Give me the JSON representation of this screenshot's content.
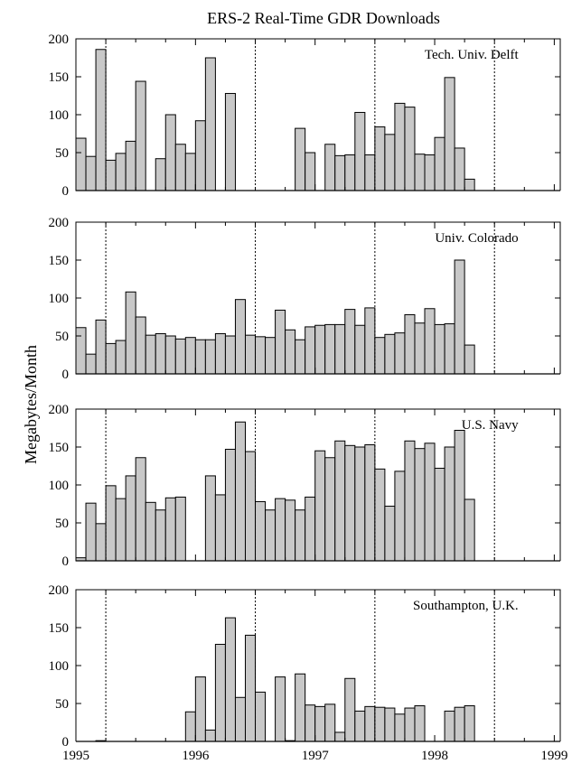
{
  "title": "ERS-2 Real-Time GDR Downloads",
  "ylabel": "Megabytes/Month",
  "x_tick_labels": [
    "1995",
    "1996",
    "1997",
    "1998",
    "1999"
  ],
  "colors": {
    "bar_fill": "#c8c8c8",
    "bar_stroke": "#000000",
    "axis": "#000000"
  },
  "chart_data": [
    {
      "type": "bar",
      "title": "ERS-2 Real-Time GDR Downloads",
      "panel_label": "Tech. Univ. Delft",
      "ylabel": "Megabytes/Month",
      "ylim": [
        0,
        200
      ],
      "yticks": [
        0,
        50,
        100,
        150,
        200
      ],
      "x_start": "1995-01",
      "x_ticks": [
        "1995",
        "1996",
        "1997",
        "1998",
        "1999"
      ],
      "x_range": [
        1995.0,
        1999.05
      ],
      "reference_lines": [
        1995.25,
        1996.5,
        1997.5,
        1998.5
      ],
      "values": [
        69,
        45,
        186,
        40,
        49,
        65,
        144,
        0,
        42,
        100,
        61,
        49,
        92,
        175,
        0,
        128,
        0,
        0,
        0,
        0,
        0,
        0,
        82,
        50,
        0,
        61,
        46,
        47,
        103,
        47,
        84,
        74,
        115,
        110,
        48,
        47,
        70,
        149,
        56,
        15
      ]
    },
    {
      "type": "bar",
      "panel_label": "Univ. Colorado",
      "ylim": [
        0,
        200
      ],
      "yticks": [
        0,
        50,
        100,
        150,
        200
      ],
      "x_start": "1995-01",
      "x_ticks": [
        "1995",
        "1996",
        "1997",
        "1998",
        "1999"
      ],
      "x_range": [
        1995.0,
        1999.05
      ],
      "reference_lines": [
        1995.25,
        1996.5,
        1997.5,
        1998.5
      ],
      "values": [
        61,
        26,
        71,
        40,
        44,
        108,
        75,
        51,
        53,
        50,
        46,
        48,
        45,
        45,
        53,
        50,
        98,
        51,
        49,
        48,
        84,
        58,
        45,
        62,
        64,
        65,
        65,
        85,
        64,
        87,
        48,
        52,
        54,
        78,
        67,
        86,
        65,
        66,
        150,
        38
      ]
    },
    {
      "type": "bar",
      "panel_label": "U.S. Navy",
      "ylim": [
        0,
        200
      ],
      "yticks": [
        0,
        50,
        100,
        150,
        200
      ],
      "x_start": "1995-01",
      "x_ticks": [
        "1995",
        "1996",
        "1997",
        "1998",
        "1999"
      ],
      "x_range": [
        1995.0,
        1999.05
      ],
      "reference_lines": [
        1995.25,
        1996.5,
        1997.5,
        1998.5
      ],
      "values": [
        4,
        76,
        49,
        99,
        82,
        112,
        136,
        77,
        67,
        83,
        84,
        0,
        0,
        112,
        87,
        147,
        183,
        144,
        78,
        67,
        82,
        80,
        67,
        84,
        145,
        136,
        158,
        152,
        150,
        153,
        121,
        72,
        118,
        158,
        148,
        155,
        122,
        150,
        172,
        81
      ]
    },
    {
      "type": "bar",
      "panel_label": "Southampton, U.K.",
      "ylim": [
        0,
        200
      ],
      "yticks": [
        0,
        50,
        100,
        150,
        200
      ],
      "x_start": "1995-01",
      "x_ticks": [
        "1995",
        "1996",
        "1997",
        "1998",
        "1999"
      ],
      "x_range": [
        1995.0,
        1999.05
      ],
      "reference_lines": [
        1995.25,
        1996.5,
        1997.5,
        1998.5
      ],
      "values": [
        0,
        0,
        1,
        0,
        0,
        0,
        0,
        0,
        0,
        0,
        0,
        39,
        85,
        15,
        128,
        163,
        58,
        140,
        65,
        0,
        85,
        1,
        89,
        48,
        46,
        49,
        12,
        83,
        40,
        46,
        45,
        44,
        36,
        44,
        47,
        0,
        0,
        40,
        45,
        47
      ]
    }
  ]
}
